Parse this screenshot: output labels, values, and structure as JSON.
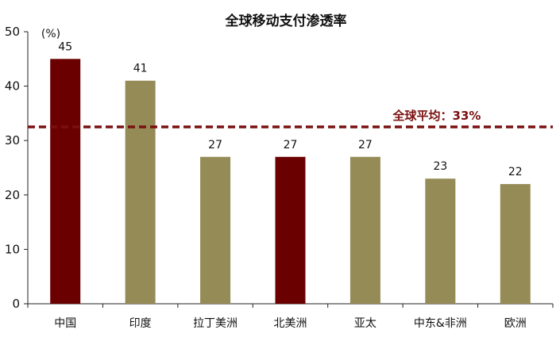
{
  "chart_data": {
    "type": "bar",
    "title": "全球移动支付渗透率",
    "unit_label": "(%)",
    "categories": [
      "中国",
      "印度",
      "拉丁美洲",
      "北美洲",
      "亚太",
      "中东&非洲",
      "欧洲"
    ],
    "values": [
      45,
      41,
      27,
      27,
      27,
      23,
      22
    ],
    "highlighted": [
      true,
      false,
      false,
      true,
      false,
      false,
      false
    ],
    "ylim": [
      0,
      50
    ],
    "yticks": [
      0,
      10,
      20,
      30,
      40,
      50
    ],
    "reference_line": {
      "label": "全球平均：33%",
      "value": 32.5
    },
    "colors": {
      "highlight": "#6b0000",
      "normal": "#958b57",
      "reference": "#7a1010",
      "reference_text": "#7a1010",
      "axis": "#222222"
    },
    "grid": false
  }
}
